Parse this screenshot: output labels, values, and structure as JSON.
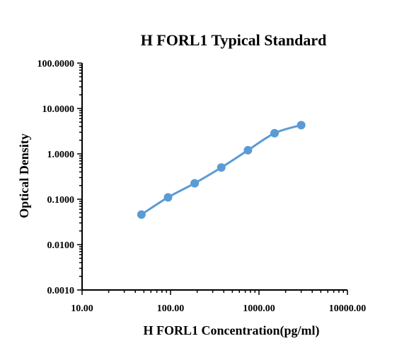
{
  "chart_data": {
    "type": "line",
    "title": "H FORL1 Typical Standard",
    "xlabel": "H FORL1 Concentration(pg/ml)",
    "ylabel": "Optical Density",
    "x_scale": "log",
    "y_scale": "log",
    "xlim": [
      10,
      10000
    ],
    "ylim": [
      0.001,
      100
    ],
    "x_tick_labels": [
      "10.00",
      "100.00",
      "1000.00",
      "10000.00"
    ],
    "y_tick_labels": [
      "0.0010",
      "0.0100",
      "0.1000",
      "1.0000",
      "10.0000",
      "100.0000"
    ],
    "grid": false,
    "series": [
      {
        "color": "#5b9bd5",
        "x": [
          46.875,
          93.75,
          187.5,
          375,
          750,
          1500,
          3000
        ],
        "y": [
          0.046,
          0.11,
          0.225,
          0.5,
          1.2,
          2.85,
          4.3
        ]
      }
    ]
  }
}
